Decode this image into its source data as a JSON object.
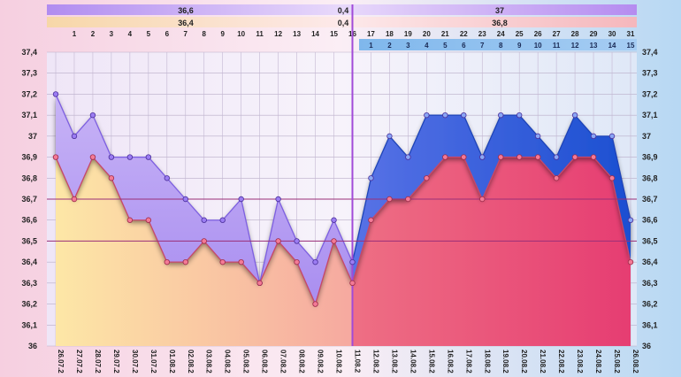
{
  "chart_data": {
    "type": "area",
    "ylim": [
      36,
      37.4
    ],
    "yticks": [
      "37,4",
      "37,3",
      "37,2",
      "37,1",
      "37",
      "36,9",
      "36,8",
      "36,7",
      "36,6",
      "36,5",
      "36,4",
      "36,3",
      "36,2",
      "36,1",
      "36"
    ],
    "x": [
      "26.07.2",
      "27.07.2",
      "28.07.2",
      "29.07.2",
      "30.07.2",
      "31.07.2",
      "01.08.2",
      "02.08.2",
      "03.08.2",
      "04.08.2",
      "05.08.2",
      "06.08.2",
      "07.08.2",
      "08.08.2",
      "09.08.2",
      "10.08.2",
      "11.08.2",
      "12.08.2",
      "13.08.2",
      "14.08.2",
      "15.08.2",
      "16.08.2",
      "17.08.2",
      "18.08.2",
      "19.08.2",
      "20.08.2",
      "21.08.2",
      "22.08.2",
      "23.08.2",
      "24.08.2",
      "25.08.2",
      "26.08.2"
    ],
    "cycle_days": [
      "",
      "1",
      "2",
      "3",
      "4",
      "5",
      "6",
      "7",
      "8",
      "9",
      "10",
      "11",
      "12",
      "13",
      "14",
      "15",
      "16",
      "17",
      "18",
      "19",
      "20",
      "21",
      "22",
      "23",
      "24",
      "25",
      "26",
      "27",
      "28",
      "29",
      "30",
      "31"
    ],
    "phase_days": [
      "1",
      "2",
      "3",
      "4",
      "5",
      "6",
      "7",
      "8",
      "9",
      "10",
      "11",
      "12",
      "13",
      "14",
      "15"
    ],
    "series": [
      {
        "values": [
          37.2,
          37.0,
          37.1,
          36.9,
          36.9,
          36.9,
          36.8,
          36.7,
          36.6,
          36.6,
          36.7,
          36.3,
          36.7,
          36.5,
          36.4,
          36.6,
          36.4,
          36.8,
          37.0,
          36.9,
          37.1,
          37.1,
          37.1,
          36.9,
          37.1,
          37.1,
          37.0,
          36.9,
          37.1,
          37.0,
          37.0,
          36.6
        ],
        "color": "#8a6cf2"
      },
      {
        "values": [
          36.9,
          36.7,
          36.9,
          36.8,
          36.6,
          36.6,
          36.4,
          36.4,
          36.5,
          36.4,
          36.4,
          36.3,
          36.5,
          36.4,
          36.2,
          36.5,
          36.3,
          36.6,
          36.7,
          36.7,
          36.8,
          36.9,
          36.9,
          36.7,
          36.9,
          36.9,
          36.9,
          36.8,
          36.9,
          36.9,
          36.8,
          36.4
        ],
        "color": "#f0607e"
      }
    ],
    "reference_lines": [
      36.7,
      36.5
    ],
    "split_index": 16,
    "header": {
      "upper_row": {
        "left": "36,6",
        "mid": "0,4",
        "right": "37"
      },
      "lower_row": {
        "left": "36,4",
        "mid": "0,4",
        "right": "36,8"
      }
    }
  }
}
